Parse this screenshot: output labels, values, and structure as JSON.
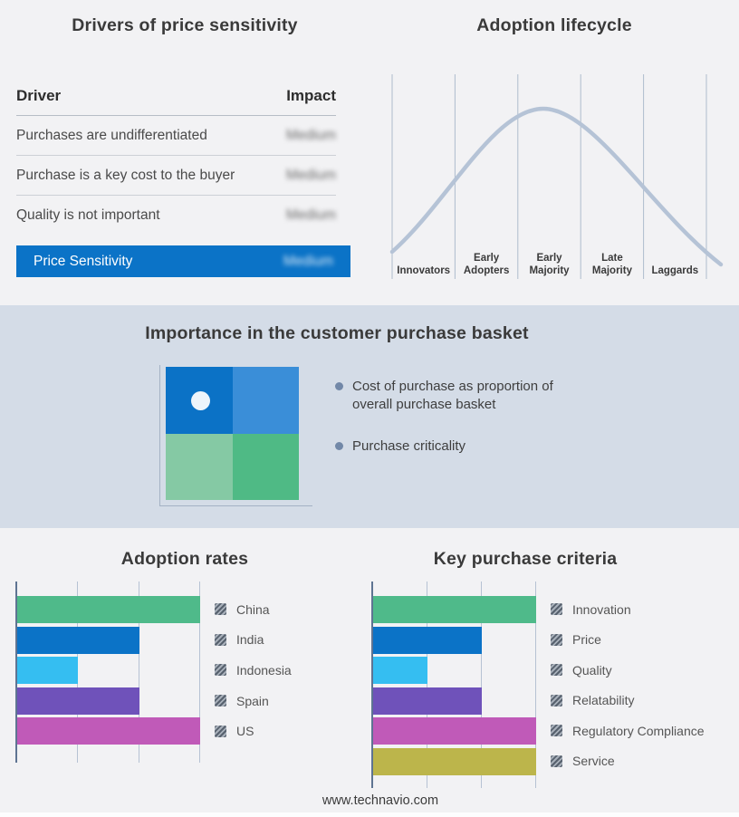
{
  "page": {
    "footer_url": "www.technavio.com"
  },
  "drivers_table": {
    "title": "Drivers of price sensitivity",
    "columns": {
      "driver": "Driver",
      "impact": "Impact"
    },
    "rows": [
      {
        "driver": "Purchases are undifferentiated",
        "impact": "Medium"
      },
      {
        "driver": "Purchase is a key cost to the buyer",
        "impact": "Medium"
      },
      {
        "driver": "Quality is not important",
        "impact": "Medium"
      }
    ],
    "highlight_row": {
      "driver": "Price Sensitivity",
      "impact": "Medium"
    },
    "highlight_color": "#0b73c7",
    "impact_values_blurred": true
  },
  "purchase_basket": {
    "title": "Importance in the customer purchase basket",
    "bullets": [
      "Cost of purchase as proportion of overall purchase basket",
      "Purchase criticality"
    ],
    "quadrant_colors": {
      "top_left": "#0b72c6",
      "top_right": "#3a8ed8",
      "bottom_left": "#85c9a4",
      "bottom_right": "#4fba85"
    },
    "marker_quadrant": "top_left",
    "band_background": "#d4dce7"
  },
  "chart_data": [
    {
      "type": "line",
      "title": "Adoption lifecycle",
      "categories": [
        "Innovators",
        "Early Adopters",
        "Early Majority",
        "Late Majority",
        "Laggards"
      ],
      "values": [
        0.25,
        0.7,
        1.0,
        0.65,
        0.2
      ],
      "description": "Bell-shaped adoption curve peaking in the Early Majority segment",
      "curve_color": "#b5c3d6",
      "gridline_color": "#aebccd",
      "grid": "vertical-separators",
      "legend_position": "none"
    },
    {
      "type": "bar",
      "orientation": "horizontal",
      "title": "Adoption rates",
      "categories": [
        "China",
        "India",
        "Indonesia",
        "Spain",
        "US"
      ],
      "values": [
        3,
        2,
        1,
        2,
        3
      ],
      "xlim": [
        0,
        3
      ],
      "colors": [
        "#4fba8a",
        "#0b73c7",
        "#35bef1",
        "#6f52ba",
        "#c05ab8"
      ],
      "legend_position": "right",
      "legend_swatch_style": "hatched-censored",
      "grid": "vertical"
    },
    {
      "type": "bar",
      "orientation": "horizontal",
      "title": "Key purchase criteria",
      "categories": [
        "Innovation",
        "Price",
        "Quality",
        "Relatability",
        "Regulatory Compliance",
        "Service"
      ],
      "values": [
        3,
        2,
        1,
        2,
        3,
        3
      ],
      "xlim": [
        0,
        3
      ],
      "colors": [
        "#4fba8a",
        "#0b73c7",
        "#35bef1",
        "#6f52ba",
        "#c05ab8",
        "#bcb54b"
      ],
      "legend_position": "right",
      "legend_swatch_style": "hatched-censored",
      "grid": "vertical"
    }
  ]
}
